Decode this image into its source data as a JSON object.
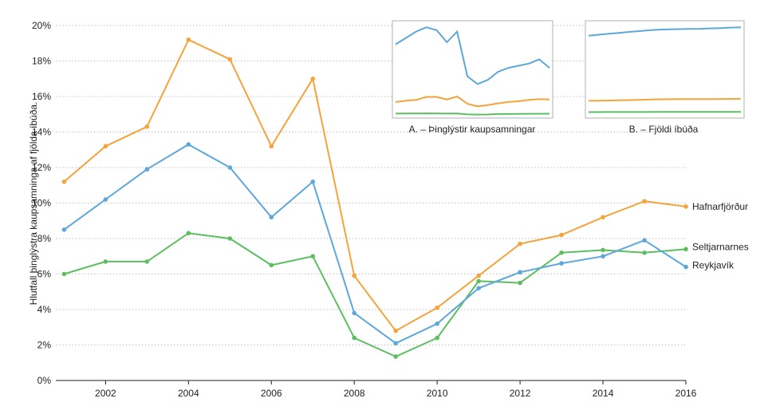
{
  "chart_data": [
    {
      "type": "line",
      "title": "",
      "xlabel": "",
      "ylabel": "Hlutfall þinglýstra kaupsamninga af fjölda íbúða.",
      "x": [
        2001,
        2002,
        2003,
        2004,
        2005,
        2006,
        2007,
        2008,
        2009,
        2010,
        2011,
        2012,
        2013,
        2014,
        2015,
        2016
      ],
      "xticks": [
        "2002",
        "2004",
        "2006",
        "2008",
        "2010",
        "2012",
        "2014",
        "2016"
      ],
      "xtick_values": [
        2002,
        2004,
        2006,
        2008,
        2010,
        2012,
        2014,
        2016
      ],
      "xlim": [
        2000.8,
        2016
      ],
      "ylim": [
        0,
        20
      ],
      "yticks": [
        "0%",
        "2%",
        "4%",
        "6%",
        "8%",
        "10%",
        "12%",
        "14%",
        "16%",
        "18%",
        "20%"
      ],
      "ytick_values": [
        0,
        2,
        4,
        6,
        8,
        10,
        12,
        14,
        16,
        18,
        20
      ],
      "grid": true,
      "series": [
        {
          "name": "Hafnarfjörður",
          "color": "#f5a33a",
          "values": [
            11.2,
            13.2,
            14.3,
            19.2,
            18.1,
            13.2,
            17.0,
            5.9,
            2.8,
            4.1,
            5.9,
            7.7,
            8.2,
            9.2,
            10.1,
            9.8
          ]
        },
        {
          "name": "Seltjarnarnes",
          "color": "#5cbf5f",
          "values": [
            6.0,
            6.7,
            6.7,
            8.3,
            8.0,
            6.5,
            7.0,
            2.4,
            1.35,
            2.4,
            5.6,
            5.5,
            7.2,
            7.35,
            7.2,
            7.4
          ]
        },
        {
          "name": "Reykjavík",
          "color": "#5da7dc",
          "values": [
            8.5,
            10.2,
            11.9,
            13.3,
            12.0,
            9.2,
            11.2,
            3.8,
            2.1,
            3.2,
            5.2,
            6.1,
            6.6,
            7.0,
            7.9,
            6.4
          ]
        }
      ]
    },
    {
      "type": "line",
      "title": "A. – Þinglýstir kaupsamningar",
      "series": [
        {
          "color": "#5da7dc",
          "values": [
            1650,
            1800,
            1950,
            2050,
            1980,
            1700,
            1950,
            900,
            720,
            820,
            1010,
            1100,
            1150,
            1200,
            1300,
            1100
          ]
        },
        {
          "color": "#f5a33a",
          "values": [
            300,
            330,
            350,
            420,
            420,
            360,
            430,
            260,
            200,
            230,
            270,
            300,
            320,
            350,
            370,
            360
          ]
        },
        {
          "color": "#5cbf5f",
          "values": [
            30,
            32,
            32,
            36,
            34,
            30,
            34,
            12,
            8,
            10,
            20,
            20,
            24,
            26,
            26,
            28
          ]
        }
      ]
    },
    {
      "type": "line",
      "title": "B. – Fjöldi íbúða",
      "series": [
        {
          "color": "#5da7dc",
          "values": [
            48000,
            48600,
            49200,
            49700,
            50300,
            50800,
            51300,
            51700,
            51850,
            52000,
            52100,
            52200,
            52400,
            52600,
            52900,
            53100
          ]
        },
        {
          "color": "#f5a33a",
          "values": [
            8500,
            8600,
            8700,
            8800,
            8950,
            9100,
            9300,
            9450,
            9500,
            9520,
            9540,
            9560,
            9580,
            9600,
            9650,
            9700
          ]
        },
        {
          "color": "#5cbf5f",
          "values": [
            1700,
            1710,
            1720,
            1730,
            1740,
            1750,
            1760,
            1770,
            1775,
            1780,
            1785,
            1790,
            1795,
            1800,
            1810,
            1820
          ]
        }
      ]
    }
  ]
}
